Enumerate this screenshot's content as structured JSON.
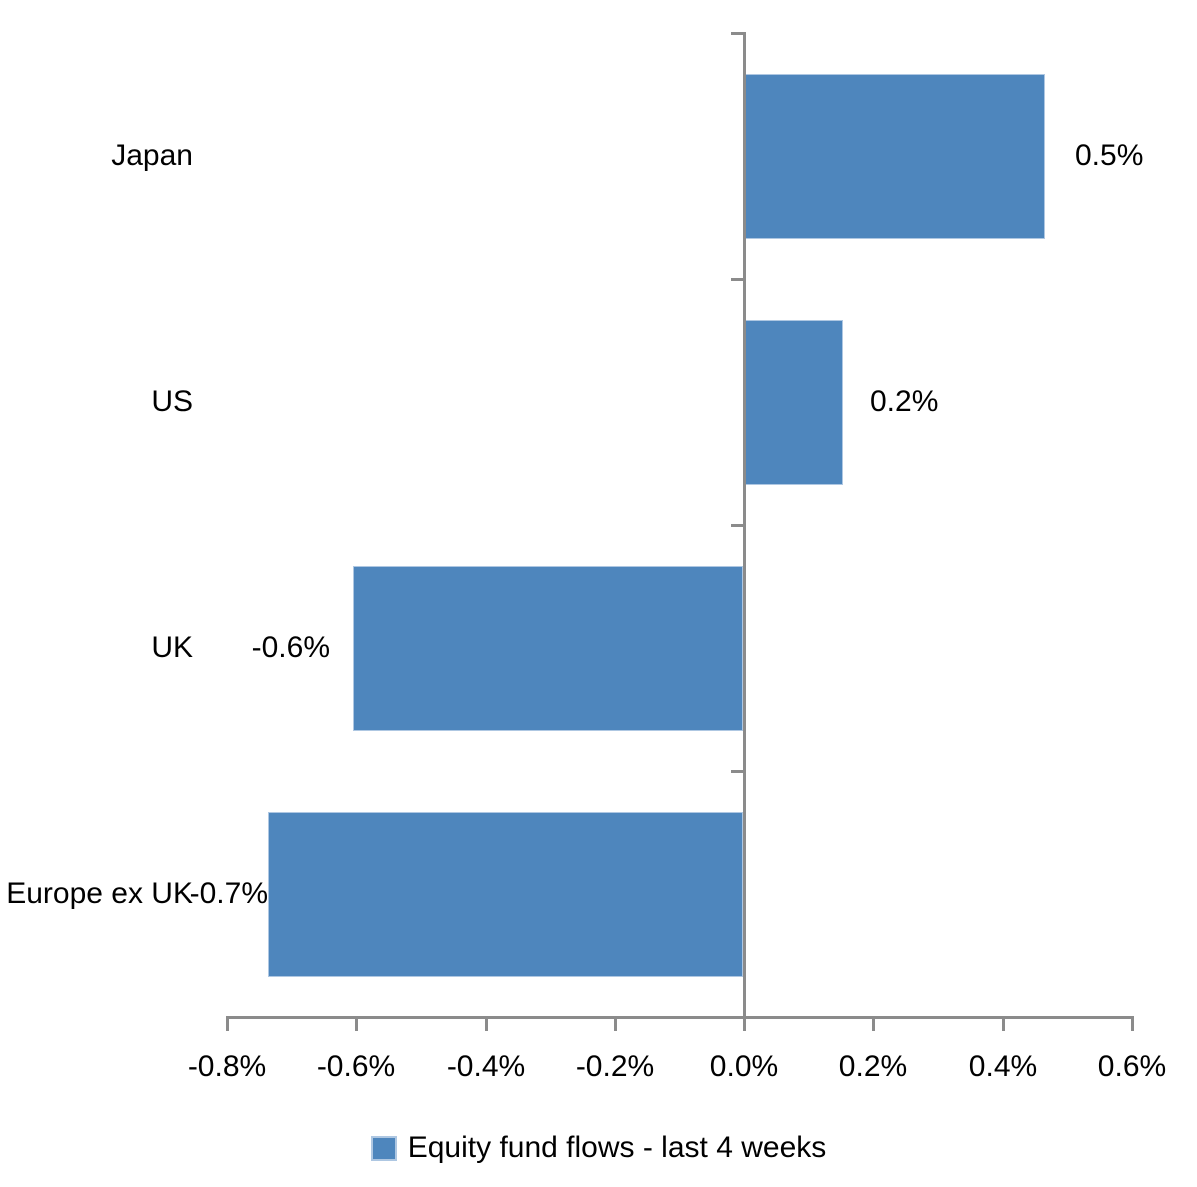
{
  "chart_data": {
    "type": "bar",
    "orientation": "horizontal",
    "title": "",
    "xlabel": "",
    "ylabel": "",
    "categories": [
      "Japan",
      "US",
      "UK",
      "Europe ex UK"
    ],
    "series": [
      {
        "name": "Equity fund flows - last 4 weeks",
        "values": [
          0.5,
          0.2,
          -0.6,
          -0.7
        ],
        "values_precise_pct": [
          0.467,
          0.155,
          -0.603,
          -0.735
        ],
        "data_labels": [
          "0.5%",
          "0.2%",
          "-0.6%",
          "-0.7%"
        ]
      }
    ],
    "x_axis": {
      "min": -0.8,
      "max": 0.6,
      "step": 0.2,
      "format": "percent",
      "tick_labels": [
        "-0.8%",
        "-0.6%",
        "-0.4%",
        "-0.2%",
        "0.0%",
        "0.2%",
        "0.4%",
        "0.6%"
      ]
    },
    "grid": false,
    "legend": {
      "position": "bottom",
      "entries": [
        "Equity fund flows - last 4 weeks"
      ]
    },
    "colors": {
      "bar": "#4E86BD",
      "bar_border": "#AEC7E2",
      "axis": "#8B8B8B",
      "text": "#000000",
      "background": "#FFFFFF"
    }
  }
}
